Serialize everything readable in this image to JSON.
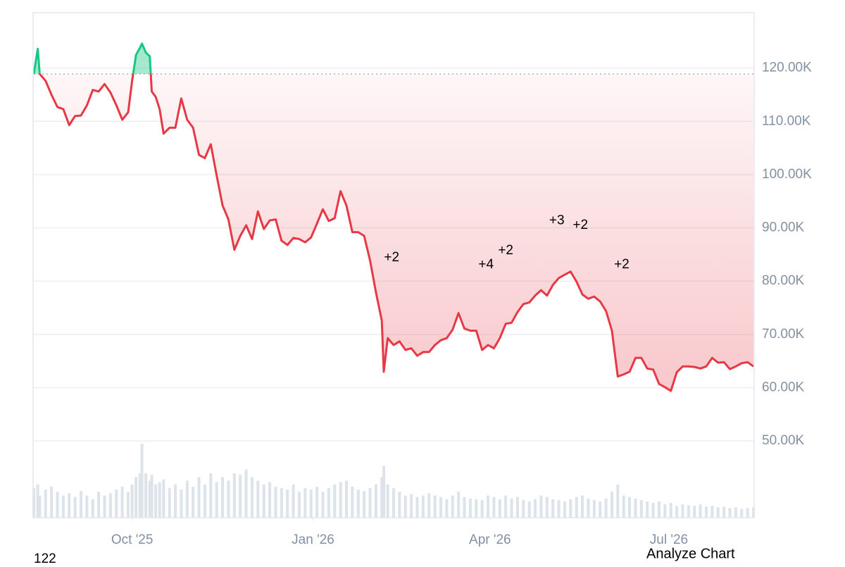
{
  "chart_data": {
    "type": "line",
    "x": [
      0,
      2,
      3,
      6,
      9,
      12,
      15,
      18,
      21,
      24,
      27,
      30,
      33,
      36,
      39,
      42,
      45,
      48,
      50,
      52,
      54,
      55,
      57,
      59,
      60,
      62,
      64,
      66,
      69,
      72,
      75,
      78,
      81,
      84,
      87,
      90,
      93,
      96,
      99,
      102,
      105,
      108,
      111,
      114,
      117,
      120,
      123,
      126,
      129,
      132,
      135,
      138,
      141,
      144,
      147,
      150,
      153,
      156,
      159,
      162,
      165,
      168,
      171,
      174,
      177,
      178,
      180,
      183,
      186,
      189,
      192,
      195,
      198,
      201,
      204,
      207,
      210,
      213,
      216,
      219,
      222,
      225,
      228,
      231,
      234,
      237,
      240,
      243,
      246,
      249,
      252,
      255,
      258,
      261,
      264,
      267,
      270,
      273,
      276,
      279,
      282,
      285,
      288,
      291,
      294,
      297,
      300,
      303,
      306,
      309,
      312,
      315,
      318,
      321,
      324,
      327,
      330,
      333,
      336,
      339,
      342,
      345,
      348,
      351,
      354,
      357,
      360,
      363,
      366
    ],
    "values": [
      118.9,
      123.6,
      118.9,
      117.6,
      115.0,
      112.7,
      112.3,
      109.3,
      111.0,
      111.1,
      113.0,
      115.9,
      115.6,
      117.0,
      115.4,
      113.0,
      110.3,
      111.7,
      117.6,
      122.5,
      123.8,
      124.6,
      122.9,
      122.2,
      115.6,
      114.6,
      112.3,
      107.7,
      108.8,
      108.8,
      114.3,
      110.3,
      108.8,
      103.7,
      103.1,
      105.7,
      99.8,
      94.2,
      91.6,
      85.9,
      88.5,
      90.5,
      87.9,
      93.1,
      89.8,
      91.4,
      91.6,
      87.6,
      86.8,
      88.1,
      87.9,
      87.3,
      88.2,
      90.8,
      93.5,
      91.3,
      91.8,
      96.9,
      94.2,
      89.2,
      89.2,
      88.5,
      83.9,
      77.9,
      72.6,
      63.0,
      69.3,
      68.0,
      68.7,
      67.1,
      67.4,
      66.0,
      66.7,
      66.7,
      68.0,
      68.9,
      69.3,
      70.9,
      74.0,
      71.1,
      70.7,
      70.7,
      67.1,
      68.0,
      67.4,
      69.3,
      72.0,
      72.2,
      74.2,
      75.7,
      76.0,
      77.3,
      78.3,
      77.3,
      79.3,
      80.6,
      81.2,
      81.8,
      79.9,
      77.5,
      76.7,
      77.1,
      76.2,
      74.4,
      70.7,
      62.1,
      62.5,
      63.0,
      65.6,
      65.6,
      63.6,
      63.4,
      60.7,
      60.1,
      59.4,
      62.9,
      64.0,
      64.0,
      63.9,
      63.6,
      64.0,
      65.6,
      64.7,
      64.8,
      63.5,
      64.0,
      64.6,
      64.8,
      64.0
    ],
    "volume": [
      40,
      45,
      30,
      38,
      42,
      35,
      30,
      33,
      28,
      36,
      30,
      25,
      35,
      30,
      33,
      38,
      42,
      35,
      45,
      55,
      60,
      100,
      60,
      50,
      58,
      45,
      48,
      52,
      40,
      45,
      38,
      50,
      42,
      55,
      45,
      60,
      48,
      55,
      50,
      60,
      58,
      65,
      55,
      50,
      45,
      48,
      42,
      40,
      38,
      45,
      35,
      40,
      38,
      42,
      35,
      40,
      45,
      48,
      50,
      42,
      38,
      36,
      40,
      45,
      55,
      70,
      45,
      40,
      35,
      30,
      32,
      28,
      30,
      33,
      30,
      28,
      25,
      30,
      35,
      28,
      26,
      25,
      24,
      30,
      28,
      25,
      30,
      26,
      28,
      24,
      22,
      25,
      30,
      28,
      25,
      24,
      22,
      25,
      28,
      30,
      26,
      24,
      22,
      26,
      35,
      45,
      30,
      28,
      26,
      24,
      22,
      20,
      22,
      18,
      20,
      16,
      18,
      17,
      16,
      18,
      15,
      16,
      14,
      15,
      13,
      14,
      12,
      13,
      14
    ],
    "baseline": 118.9,
    "color_below": "#e63946",
    "color_above": "#16c784",
    "volume_color": "#dde3ea",
    "xlim": [
      0,
      366
    ],
    "xticks": [
      {
        "value": 50,
        "label": "Oct '25"
      },
      {
        "value": 142,
        "label": "Jan '26"
      },
      {
        "value": 232,
        "label": "Apr '26"
      },
      {
        "value": 323,
        "label": "Jul '26"
      }
    ],
    "ylim": [
      35.6,
      130.4
    ],
    "yticks": [
      {
        "value": 50,
        "label": "50.00K"
      },
      {
        "value": 60,
        "label": "60.00K"
      },
      {
        "value": 70,
        "label": "70.00K"
      },
      {
        "value": 80,
        "label": "80.00K"
      },
      {
        "value": 90,
        "label": "90.00K"
      },
      {
        "value": 100,
        "label": "100.00K"
      },
      {
        "value": 110,
        "label": "110.00K"
      },
      {
        "value": 120,
        "label": "120.00K"
      }
    ],
    "grid": true,
    "annotations": [
      {
        "text": "+2",
        "x": 182,
        "y": 84.4
      },
      {
        "text": "+4",
        "x": 230,
        "y": 83.1
      },
      {
        "text": "+2",
        "x": 240,
        "y": 85.7
      },
      {
        "text": "+3",
        "x": 266,
        "y": 91.3
      },
      {
        "text": "+2",
        "x": 278,
        "y": 90.5
      },
      {
        "text": "+2",
        "x": 299,
        "y": 83.1
      }
    ],
    "footer_left": "122",
    "button": "Analyze Chart"
  }
}
